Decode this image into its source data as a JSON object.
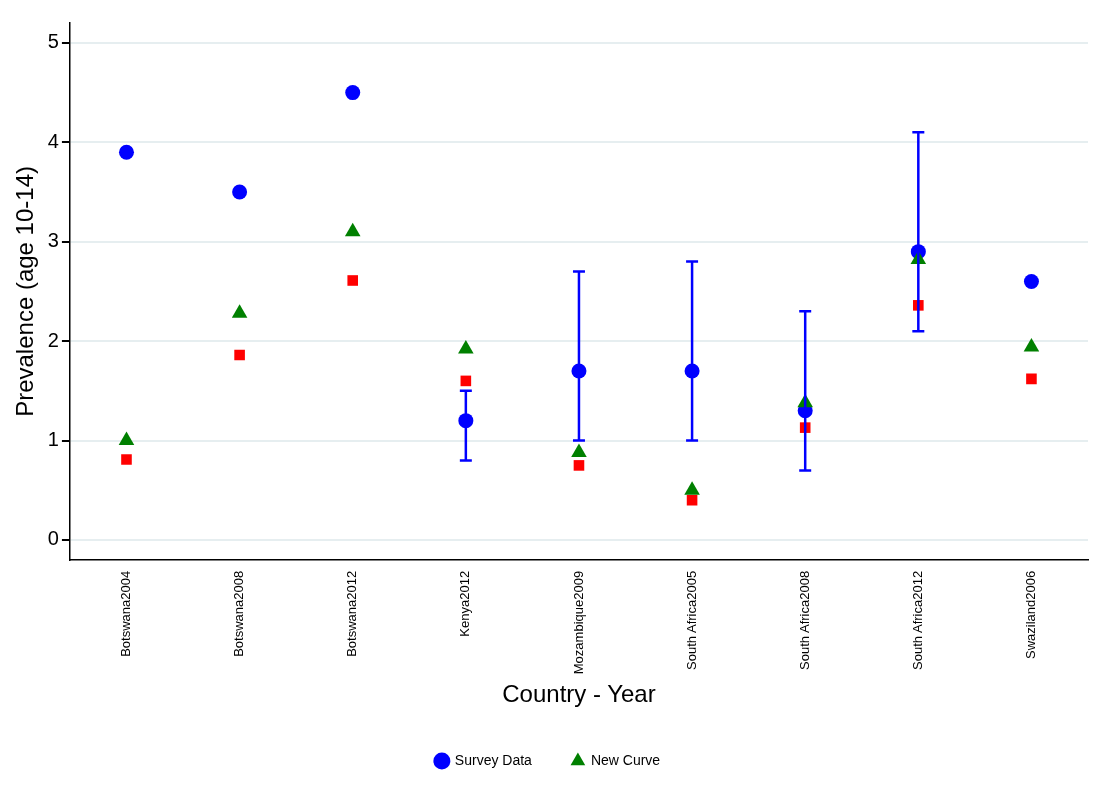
{
  "chart_data": {
    "type": "scatter",
    "xlabel": "Country - Year",
    "ylabel": "Prevalence (age 10-14)",
    "categories": [
      "Botswana2004",
      "Botswana2008",
      "Botswana2012",
      "Kenya2012",
      "Mozambique2009",
      "South Africa2005",
      "South Africa2008",
      "South Africa2012",
      "Swaziland2006"
    ],
    "series": [
      {
        "name": "Survey Data",
        "color": "#0000ff",
        "marker": "circle",
        "values": [
          3.9,
          3.5,
          4.5,
          1.2,
          1.7,
          1.7,
          1.3,
          2.9,
          2.6
        ],
        "errors": [
          null,
          null,
          null,
          [
            0.8,
            1.5
          ],
          [
            1.0,
            2.7
          ],
          [
            1.0,
            2.8
          ],
          [
            0.7,
            2.3
          ],
          [
            2.1,
            4.1
          ],
          null
        ]
      },
      {
        "color": "#ff0000",
        "marker": "square",
        "values": [
          0.81,
          1.86,
          2.61,
          1.6,
          0.75,
          0.4,
          1.13,
          2.36,
          1.62
        ]
      },
      {
        "name": "New Curve",
        "color": "#008000",
        "marker": "triangle",
        "values": [
          1.0,
          2.28,
          3.1,
          1.92,
          0.88,
          0.5,
          1.38,
          2.82,
          1.94
        ]
      }
    ],
    "ylim": [
      -0.2,
      5.2
    ],
    "yticks": [
      0,
      1,
      2,
      3,
      4,
      5
    ],
    "grid": "y",
    "legend": "bottom"
  }
}
